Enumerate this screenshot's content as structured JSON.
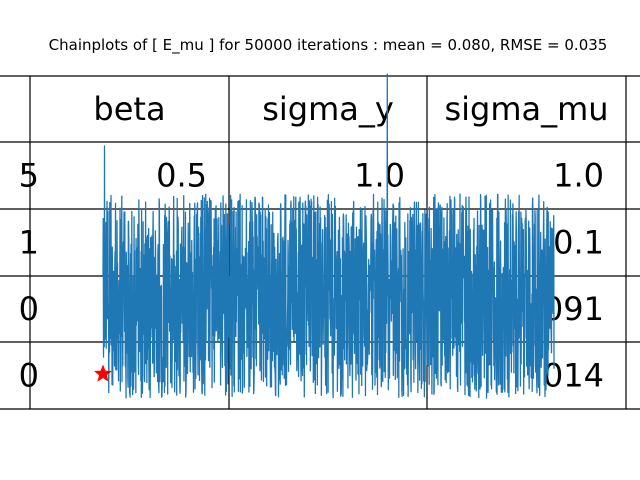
{
  "chart_data": {
    "type": "line",
    "title": "Chainplots of [ E_mu ] for 50000 iterations : mean = 0.080, RMSE = 0.035",
    "xlabel": "",
    "ylabel": "",
    "axes_visible": false,
    "table": {
      "columns": [
        "",
        "beta",
        "sigma_y",
        "sigma_mu",
        ""
      ],
      "rows": [
        [
          "5",
          "0.5",
          "1.0",
          "1.0",
          ""
        ],
        [
          "1",
          "",
          "",
          "0.1",
          ""
        ],
        [
          "0",
          "",
          "",
          "091",
          ""
        ],
        [
          "0",
          "",
          "",
          "014",
          ""
        ]
      ]
    },
    "series": [
      {
        "color": "#1f77b4",
        "iterations": 50000,
        "mean": 0.08,
        "rmse": 0.035,
        "typical_range": [
          0.02,
          0.16
        ],
        "peak_max": 0.28,
        "trough_min": 0.0
      }
    ],
    "true_value_marker": {
      "symbol": "star",
      "color": "#ff0000",
      "iteration": 0,
      "value": 0.03
    }
  }
}
